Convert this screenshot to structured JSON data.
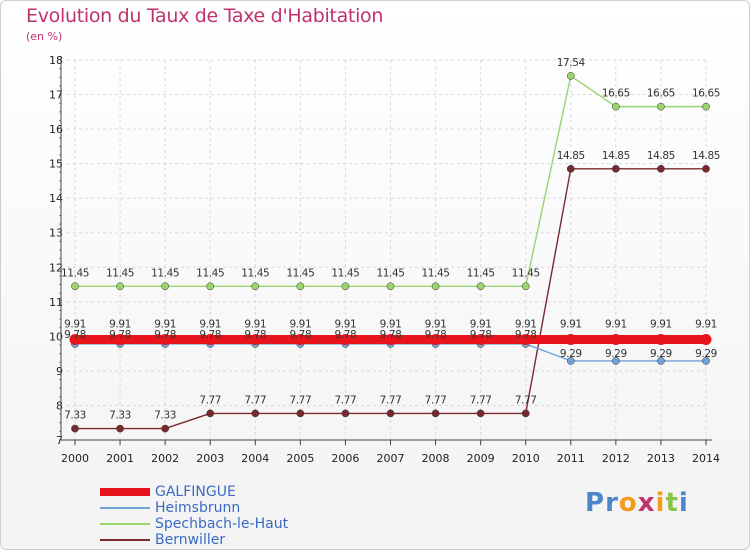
{
  "header": {
    "title": "Evolution du Taux de Taxe d'Habitation",
    "unit": "(en %)"
  },
  "logo": {
    "text": "Proxiti",
    "letters": [
      "P",
      "r",
      "o",
      "x",
      "i",
      "t",
      "i"
    ],
    "colors": [
      "#4a86c8",
      "#4a86c8",
      "#f29b1d",
      "#c0326e",
      "#f29b1d",
      "#8bc34a",
      "#4a86c8"
    ]
  },
  "chart_data": {
    "type": "line",
    "title": "Evolution du Taux de Taxe d'Habitation",
    "ylabel": "(en %)",
    "xlabel": "",
    "categories": [
      "2000",
      "2001",
      "2002",
      "2003",
      "2004",
      "2005",
      "2006",
      "2007",
      "2008",
      "2009",
      "2010",
      "2011",
      "2012",
      "2013",
      "2014"
    ],
    "ylim": [
      7,
      18
    ],
    "yticks": [
      "7",
      "8",
      "9",
      "10",
      "11",
      "12",
      "13",
      "14",
      "15",
      "16",
      "17",
      "18"
    ],
    "grid": true,
    "legend_position": "bottom-left",
    "series": [
      {
        "name": "GALFINGUE",
        "color": "#e8141b",
        "values": [
          9.91,
          9.91,
          9.91,
          9.91,
          9.91,
          9.91,
          9.91,
          9.91,
          9.91,
          9.91,
          9.91,
          9.91,
          9.91,
          9.91,
          9.91
        ],
        "labels": [
          "9.91",
          "9.91",
          "9.91",
          "9.91",
          "9.91",
          "9.91",
          "9.91",
          "9.91",
          "9.91",
          "9.91",
          "9.91",
          "9.91",
          "9.91",
          "9.91",
          "9.91"
        ]
      },
      {
        "name": "Heimsbrunn",
        "color": "#6fa3d8",
        "values": [
          9.78,
          9.78,
          9.78,
          9.78,
          9.78,
          9.78,
          9.78,
          9.78,
          9.78,
          9.78,
          9.78,
          9.29,
          9.29,
          9.29,
          9.29
        ],
        "labels": [
          "9.78",
          "9.78",
          "9.78",
          "9.78",
          "9.78",
          "9.78",
          "9.78",
          "9.78",
          "9.78",
          "9.78",
          "9.78",
          "9.29",
          "9.29",
          "9.29",
          "9.29"
        ]
      },
      {
        "name": "Spechbach-le-Haut",
        "color": "#9ad46f",
        "values": [
          11.45,
          11.45,
          11.45,
          11.45,
          11.45,
          11.45,
          11.45,
          11.45,
          11.45,
          11.45,
          11.45,
          17.54,
          16.65,
          16.65,
          16.65
        ],
        "labels": [
          "11.45",
          "11.45",
          "11.45",
          "11.45",
          "11.45",
          "11.45",
          "11.45",
          "11.45",
          "11.45",
          "11.45",
          "11.45",
          "17.54",
          "16.65",
          "16.65",
          "16.65"
        ]
      },
      {
        "name": "Bernwiller",
        "color": "#7a2a2e",
        "values": [
          7.33,
          7.33,
          7.33,
          7.77,
          7.77,
          7.77,
          7.77,
          7.77,
          7.77,
          7.77,
          7.77,
          14.85,
          14.85,
          14.85,
          14.85
        ],
        "labels": [
          "7.33",
          "7.33",
          "7.33",
          "7.77",
          "7.77",
          "7.77",
          "7.77",
          "7.77",
          "7.77",
          "7.77",
          "7.77",
          "14.85",
          "14.85",
          "14.85",
          "14.85"
        ]
      }
    ]
  }
}
